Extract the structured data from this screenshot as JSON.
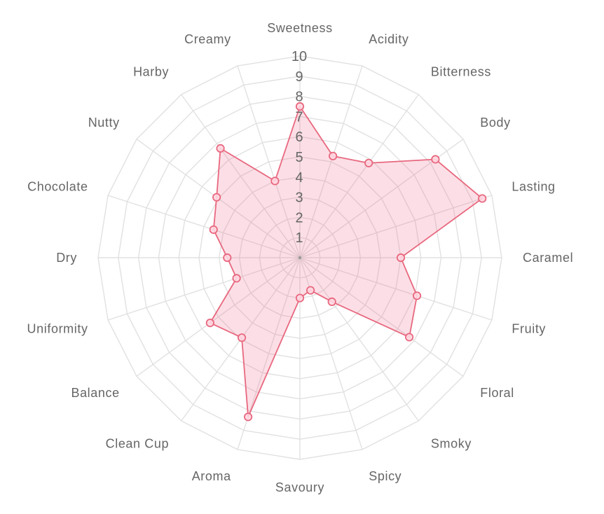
{
  "chart_data": {
    "type": "radar",
    "title": "",
    "axes": [
      "Sweetness",
      "Acidity",
      "Bitterness",
      "Body",
      "Lasting",
      "Caramel",
      "Fruity",
      "Floral",
      "Smoky",
      "Spicy",
      "Savoury",
      "Aroma",
      "Clean Cup",
      "Balance",
      "Uniformity",
      "Dry",
      "Chocolate",
      "Nutty",
      "Harby",
      "Creamy"
    ],
    "scale": {
      "min": 0,
      "max": 10,
      "step": 1
    },
    "tick_labels": [
      "1",
      "2",
      "3",
      "4",
      "5",
      "6",
      "7",
      "8",
      "9",
      "10"
    ],
    "series": [
      {
        "values": [
          7.5,
          5.3,
          5.8,
          8.3,
          9.5,
          5.0,
          6.1,
          6.7,
          2.7,
          1.7,
          2.0,
          8.3,
          4.9,
          5.5,
          3.3,
          3.6,
          4.5,
          5.1,
          6.7,
          4.0
        ],
        "color": "#e8687f",
        "fill": "rgba(240, 110, 140, 0.22)"
      }
    ],
    "grid": true,
    "legend": "none"
  }
}
